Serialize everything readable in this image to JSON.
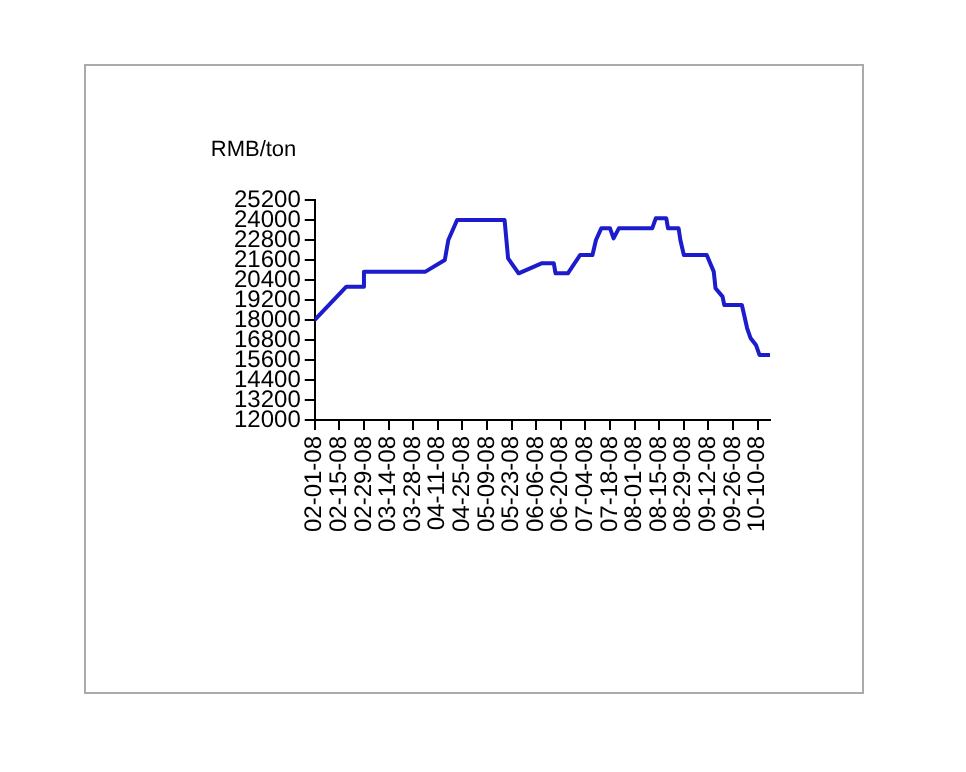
{
  "chart_data": {
    "type": "line",
    "ylabel": "RMB/ton",
    "series": [
      {
        "color": "#1c1ccc",
        "x": [
          "--02-01",
          "--02-19",
          "--02-28",
          "--02-29",
          "--04-04",
          "--04-15",
          "--04-17",
          "--04-22",
          "--05-19",
          "--05-21",
          "--05-27",
          "--06-09",
          "--06-16",
          "--06-17",
          "--06-24",
          "--07-01",
          "--07-08",
          "--07-10",
          "--07-13",
          "--07-18",
          "--07-20",
          "--07-23",
          "--08-11",
          "--08-13",
          "--08-19",
          "--08-20",
          "--08-26",
          "--08-27",
          "--08-29",
          "--09-11",
          "--09-15",
          "--09-16",
          "--09-20",
          "--09-21",
          "--10-01",
          "--10-04",
          "--10-06",
          "--10-09",
          "--10-11",
          "--10-17"
        ],
        "values": [
          18000,
          20000,
          20000,
          20900,
          20900,
          21600,
          22800,
          24000,
          24000,
          21700,
          20800,
          21400,
          21400,
          20800,
          20800,
          21900,
          21900,
          22800,
          23500,
          23500,
          22900,
          23500,
          23500,
          24100,
          24100,
          23500,
          23500,
          22800,
          21900,
          21900,
          20900,
          19900,
          19400,
          18900,
          18900,
          17500,
          16900,
          16500,
          15900,
          15900
        ]
      }
    ],
    "xlim": [
      "--02-01",
      "--10-17"
    ],
    "xticks": [
      {
        "value": "--02-01",
        "label": "02-01-08"
      },
      {
        "value": "--02-15",
        "label": "02-15-08"
      },
      {
        "value": "--02-29",
        "label": "02-29-08"
      },
      {
        "value": "--03-14",
        "label": "03-14-08"
      },
      {
        "value": "--03-28",
        "label": "03-28-08"
      },
      {
        "value": "--04-11",
        "label": "04-11-08"
      },
      {
        "value": "--04-25",
        "label": "04-25-08"
      },
      {
        "value": "--05-09",
        "label": "05-09-08"
      },
      {
        "value": "--05-23",
        "label": "05-23-08"
      },
      {
        "value": "--06-06",
        "label": "06-06-08"
      },
      {
        "value": "--06-20",
        "label": "06-20-08"
      },
      {
        "value": "--07-04",
        "label": "07-04-08"
      },
      {
        "value": "--07-18",
        "label": "07-18-08"
      },
      {
        "value": "--08-01",
        "label": "08-01-08"
      },
      {
        "value": "--08-15",
        "label": "08-15-08"
      },
      {
        "value": "--08-29",
        "label": "08-29-08"
      },
      {
        "value": "--09-12",
        "label": "09-12-08"
      },
      {
        "value": "--09-26",
        "label": "09-26-08"
      },
      {
        "value": "--10-10",
        "label": "10-10-08"
      }
    ],
    "ylim": [
      12000,
      25200
    ],
    "yticks": [
      12000,
      13200,
      14400,
      15600,
      16800,
      18000,
      19200,
      20400,
      21600,
      22800,
      24000,
      25200
    ],
    "grid": false,
    "legend": false,
    "marker": "none",
    "line_style": "solid"
  }
}
